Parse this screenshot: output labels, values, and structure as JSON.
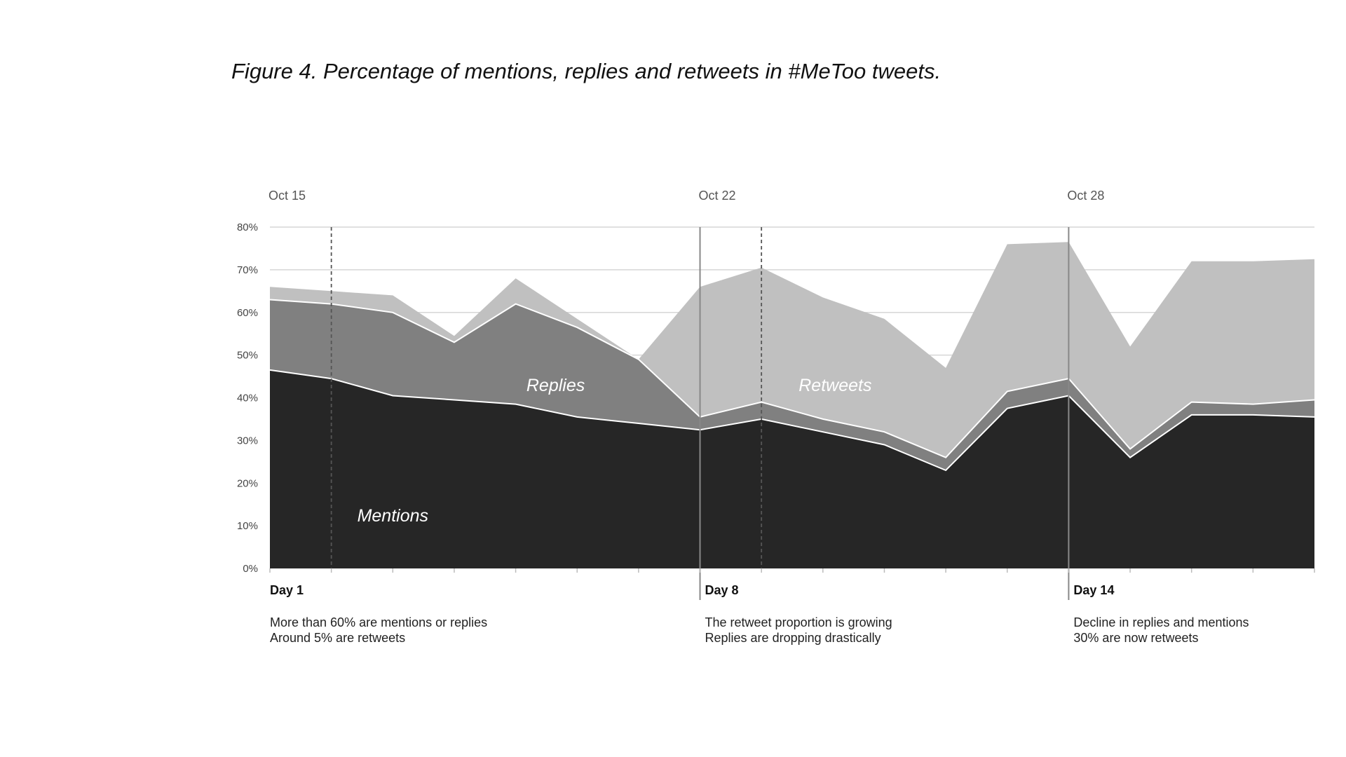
{
  "title": "Figure 4. Percentage of mentions, replies and retweets in #MeToo tweets.",
  "chart_data": {
    "type": "area",
    "stacked": true,
    "title": "Figure 4. Percentage of mentions, replies and retweets in #MeToo tweets.",
    "x": [
      1,
      2,
      3,
      4,
      5,
      6,
      7,
      8,
      9,
      10,
      11,
      12,
      13,
      14,
      15,
      16,
      17,
      18
    ],
    "ylim": [
      0,
      80
    ],
    "yticks": [
      "0%",
      "10%",
      "20%",
      "30%",
      "40%",
      "50%",
      "60%",
      "70%",
      "80%"
    ],
    "grid": true,
    "series": [
      {
        "name": "Mentions",
        "values": [
          46.5,
          44.5,
          40.5,
          39.5,
          38.5,
          35.5,
          34,
          32.5,
          35,
          32,
          29,
          23,
          37.5,
          40.5,
          26,
          36,
          36,
          35.5
        ],
        "color": "#262626"
      },
      {
        "name": "Replies",
        "values": [
          16.5,
          17.5,
          19.5,
          13.5,
          23.5,
          21,
          15,
          3,
          4,
          3,
          3,
          3,
          4,
          4,
          2,
          3,
          2.5,
          4
        ],
        "color": "#808080"
      },
      {
        "name": "Retweets",
        "values": [
          3,
          3,
          4,
          1.5,
          6,
          2,
          0,
          30.5,
          31.5,
          28.5,
          26.5,
          21,
          34.5,
          32,
          24,
          33,
          33.5,
          33
        ],
        "color": "#c0c0c0"
      }
    ],
    "date_markers": [
      {
        "label": "Oct 15",
        "day": 1
      },
      {
        "label": "Oct 22",
        "day": 8
      },
      {
        "label": "Oct 28",
        "day": 14
      }
    ],
    "day_markers": [
      {
        "label": "Day 1",
        "day": 1,
        "note_lines": [
          "More than 60% are mentions or replies",
          "Around 5% are retweets"
        ]
      },
      {
        "label": "Day 8",
        "day": 8,
        "note_lines": [
          "The retweet proportion is growing",
          "Replies are dropping drastically"
        ]
      },
      {
        "label": "Day 14",
        "day": 14,
        "note_lines": [
          "Decline in replies and mentions",
          "30% are now retweets"
        ]
      }
    ],
    "dashed_markers": [
      2,
      9
    ]
  }
}
